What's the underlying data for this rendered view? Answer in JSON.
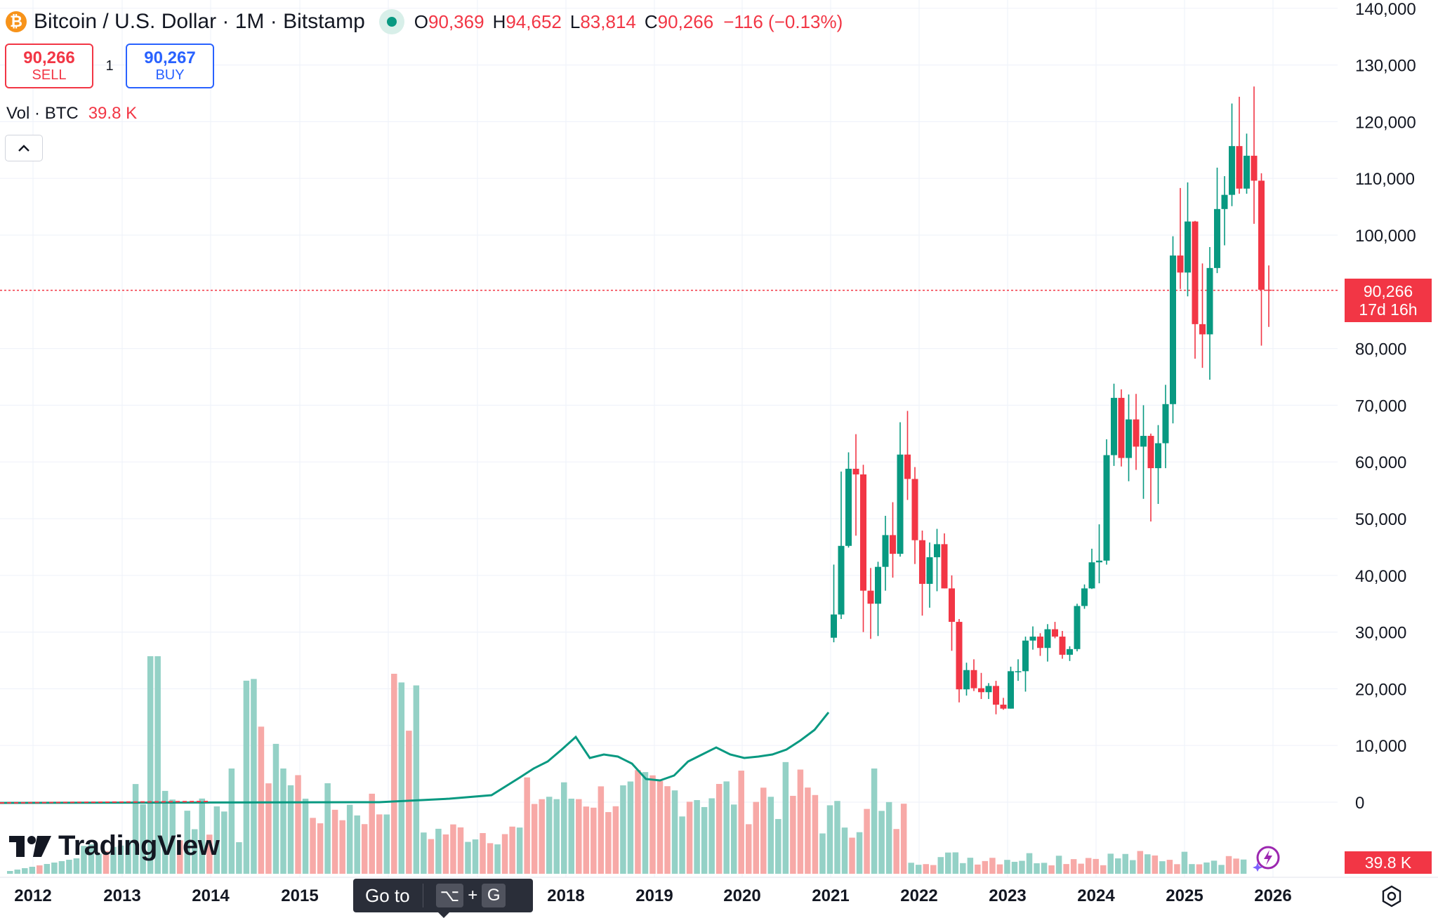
{
  "header": {
    "symbol_icon": "bitcoin-icon",
    "title": "Bitcoin / U.S. Dollar · 1M · Bitstamp",
    "status": "market-open-dot",
    "ohlc": {
      "o_label": "O",
      "o": "90,369",
      "h_label": "H",
      "h": "94,652",
      "l_label": "L",
      "l": "83,814",
      "c_label": "C",
      "c": "90,266"
    },
    "change": "−116 (−0.13%)"
  },
  "trade": {
    "sell_price": "90,266",
    "sell_label": "SELL",
    "spread": "1",
    "buy_price": "90,267",
    "buy_label": "BUY"
  },
  "volume_legend": {
    "name": "Vol · BTC",
    "value": "39.8 K"
  },
  "collapse_icon": "chevron-up-icon",
  "price_badge": {
    "price": "90,266",
    "countdown": "17d 16h"
  },
  "volume_badge": "39.8 K",
  "logo_text": "TradingView",
  "goto_tooltip": {
    "label": "Go to",
    "key1": "⌥",
    "plus": "+",
    "key2": "G"
  },
  "colors": {
    "up": "#089981",
    "down": "#f23645",
    "up_volume": "#94d1c6",
    "down_volume": "#f7a9a7",
    "grid": "#f0f3fa",
    "axis_text": "#131722"
  },
  "chart_data": {
    "type": "candlestick",
    "timeframe": "1M",
    "y_axis": {
      "ticks": [
        "140,000",
        "130,000",
        "120,000",
        "110,000",
        "100,000",
        "80,000",
        "70,000",
        "60,000",
        "50,000",
        "40,000",
        "30,000",
        "20,000",
        "10,000",
        "0"
      ],
      "range": [
        -10000,
        141000
      ],
      "current_price": 90266
    },
    "x_axis": {
      "ticks": [
        "2012",
        "2013",
        "2014",
        "2015",
        "2018",
        "2019",
        "2020",
        "2021",
        "2022",
        "2023",
        "2024",
        "2025",
        "2026"
      ]
    },
    "volume_axis_label": "0",
    "candles": [
      {
        "t": "2021-01",
        "o": 29000,
        "h": 41900,
        "l": 28200,
        "c": 33100
      },
      {
        "t": "2021-02",
        "o": 33100,
        "h": 58300,
        "l": 32300,
        "c": 45200
      },
      {
        "t": "2021-03",
        "o": 45200,
        "h": 61700,
        "l": 44900,
        "c": 58800
      },
      {
        "t": "2021-04",
        "o": 58800,
        "h": 64900,
        "l": 47000,
        "c": 57800
      },
      {
        "t": "2021-05",
        "o": 57800,
        "h": 59500,
        "l": 30000,
        "c": 37300
      },
      {
        "t": "2021-06",
        "o": 37300,
        "h": 41300,
        "l": 28800,
        "c": 35000
      },
      {
        "t": "2021-07",
        "o": 35000,
        "h": 42400,
        "l": 29300,
        "c": 41500
      },
      {
        "t": "2021-08",
        "o": 41500,
        "h": 50500,
        "l": 37300,
        "c": 47100
      },
      {
        "t": "2021-09",
        "o": 47100,
        "h": 52900,
        "l": 39600,
        "c": 43800
      },
      {
        "t": "2021-10",
        "o": 43800,
        "h": 67000,
        "l": 43300,
        "c": 61300
      },
      {
        "t": "2021-11",
        "o": 61300,
        "h": 69000,
        "l": 53300,
        "c": 57000
      },
      {
        "t": "2021-12",
        "o": 57000,
        "h": 59100,
        "l": 42000,
        "c": 46200
      },
      {
        "t": "2022-01",
        "o": 46200,
        "h": 47900,
        "l": 32900,
        "c": 38500
      },
      {
        "t": "2022-02",
        "o": 38500,
        "h": 45800,
        "l": 34300,
        "c": 43200
      },
      {
        "t": "2022-03",
        "o": 43200,
        "h": 48200,
        "l": 37200,
        "c": 45500
      },
      {
        "t": "2022-04",
        "o": 45500,
        "h": 47400,
        "l": 37700,
        "c": 37700
      },
      {
        "t": "2022-05",
        "o": 37700,
        "h": 40000,
        "l": 26700,
        "c": 31800
      },
      {
        "t": "2022-06",
        "o": 31800,
        "h": 32300,
        "l": 17600,
        "c": 19900
      },
      {
        "t": "2022-07",
        "o": 19900,
        "h": 24600,
        "l": 18800,
        "c": 23300
      },
      {
        "t": "2022-08",
        "o": 23300,
        "h": 25200,
        "l": 19600,
        "c": 20100
      },
      {
        "t": "2022-09",
        "o": 20100,
        "h": 22800,
        "l": 18200,
        "c": 19400
      },
      {
        "t": "2022-10",
        "o": 19400,
        "h": 21000,
        "l": 18200,
        "c": 20500
      },
      {
        "t": "2022-11",
        "o": 20500,
        "h": 21400,
        "l": 15500,
        "c": 17200
      },
      {
        "t": "2022-12",
        "o": 17200,
        "h": 18400,
        "l": 16300,
        "c": 16500
      },
      {
        "t": "2023-01",
        "o": 16500,
        "h": 23900,
        "l": 16500,
        "c": 23100
      },
      {
        "t": "2023-02",
        "o": 23100,
        "h": 25200,
        "l": 21400,
        "c": 23100
      },
      {
        "t": "2023-03",
        "o": 23100,
        "h": 29200,
        "l": 19500,
        "c": 28500
      },
      {
        "t": "2023-04",
        "o": 28500,
        "h": 31000,
        "l": 26900,
        "c": 29200
      },
      {
        "t": "2023-05",
        "o": 29200,
        "h": 29800,
        "l": 25800,
        "c": 27200
      },
      {
        "t": "2023-06",
        "o": 27200,
        "h": 31400,
        "l": 24800,
        "c": 30500
      },
      {
        "t": "2023-07",
        "o": 30500,
        "h": 31800,
        "l": 28900,
        "c": 29200
      },
      {
        "t": "2023-08",
        "o": 29200,
        "h": 30200,
        "l": 25300,
        "c": 26000
      },
      {
        "t": "2023-09",
        "o": 26000,
        "h": 27500,
        "l": 24900,
        "c": 27000
      },
      {
        "t": "2023-10",
        "o": 27000,
        "h": 35000,
        "l": 26600,
        "c": 34600
      },
      {
        "t": "2023-11",
        "o": 34600,
        "h": 38400,
        "l": 34100,
        "c": 37700
      },
      {
        "t": "2023-12",
        "o": 37700,
        "h": 44700,
        "l": 37600,
        "c": 42300
      },
      {
        "t": "2024-01",
        "o": 42300,
        "h": 49000,
        "l": 38600,
        "c": 42600
      },
      {
        "t": "2024-02",
        "o": 42600,
        "h": 64000,
        "l": 41900,
        "c": 61200
      },
      {
        "t": "2024-03",
        "o": 61200,
        "h": 73800,
        "l": 59300,
        "c": 71300
      },
      {
        "t": "2024-04",
        "o": 71300,
        "h": 72800,
        "l": 59200,
        "c": 60700
      },
      {
        "t": "2024-05",
        "o": 60700,
        "h": 71900,
        "l": 56600,
        "c": 67500
      },
      {
        "t": "2024-06",
        "o": 67500,
        "h": 72000,
        "l": 58600,
        "c": 62700
      },
      {
        "t": "2024-07",
        "o": 62700,
        "h": 70000,
        "l": 53500,
        "c": 64600
      },
      {
        "t": "2024-08",
        "o": 64600,
        "h": 65000,
        "l": 49500,
        "c": 58900
      },
      {
        "t": "2024-09",
        "o": 58900,
        "h": 66500,
        "l": 52600,
        "c": 63300
      },
      {
        "t": "2024-10",
        "o": 63300,
        "h": 73600,
        "l": 58900,
        "c": 70200
      },
      {
        "t": "2024-11",
        "o": 70200,
        "h": 99800,
        "l": 66800,
        "c": 96400
      },
      {
        "t": "2024-12",
        "o": 96400,
        "h": 108300,
        "l": 90500,
        "c": 93400
      },
      {
        "t": "2025-01",
        "o": 93400,
        "h": 109300,
        "l": 89200,
        "c": 102400
      },
      {
        "t": "2025-02",
        "o": 102400,
        "h": 102500,
        "l": 78200,
        "c": 84300
      },
      {
        "t": "2025-03",
        "o": 84300,
        "h": 95000,
        "l": 76600,
        "c": 82500
      },
      {
        "t": "2025-04",
        "o": 82500,
        "h": 97900,
        "l": 74500,
        "c": 94200
      },
      {
        "t": "2025-05",
        "o": 94200,
        "h": 111900,
        "l": 93300,
        "c": 104600
      },
      {
        "t": "2025-06",
        "o": 104600,
        "h": 110400,
        "l": 98200,
        "c": 107100
      },
      {
        "t": "2025-07",
        "o": 107100,
        "h": 123200,
        "l": 105100,
        "c": 115700
      },
      {
        "t": "2025-08",
        "o": 115700,
        "h": 124400,
        "l": 107300,
        "c": 108200
      },
      {
        "t": "2025-09",
        "o": 108200,
        "h": 117900,
        "l": 107300,
        "c": 114000
      },
      {
        "t": "2025-10",
        "o": 114000,
        "h": 126200,
        "l": 102000,
        "c": 109600
      },
      {
        "t": "2025-11",
        "o": 109600,
        "h": 110900,
        "l": 80500,
        "c": 90369
      },
      {
        "t": "2025-12",
        "o": 90369,
        "h": 94652,
        "l": 83814,
        "c": 90266
      }
    ]
  }
}
